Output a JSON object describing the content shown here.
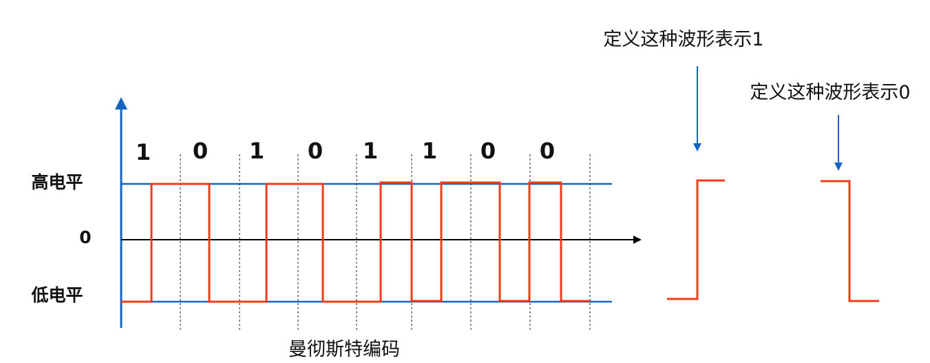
{
  "bits": [
    "1",
    "0",
    "1",
    "0",
    "1",
    "1",
    "0",
    "0"
  ],
  "levels": {
    "high": "高电平",
    "zero": "0",
    "low": "低电平"
  },
  "caption": "曼彻斯特编码",
  "definitions": {
    "one": "定义这种波形表示1",
    "zero": "定义这种波形表示0"
  },
  "colors": {
    "axis_blue": "#1565c0",
    "signal_red": "#ee3b1c",
    "time_axis": "#000000",
    "divider": "#222222"
  }
}
